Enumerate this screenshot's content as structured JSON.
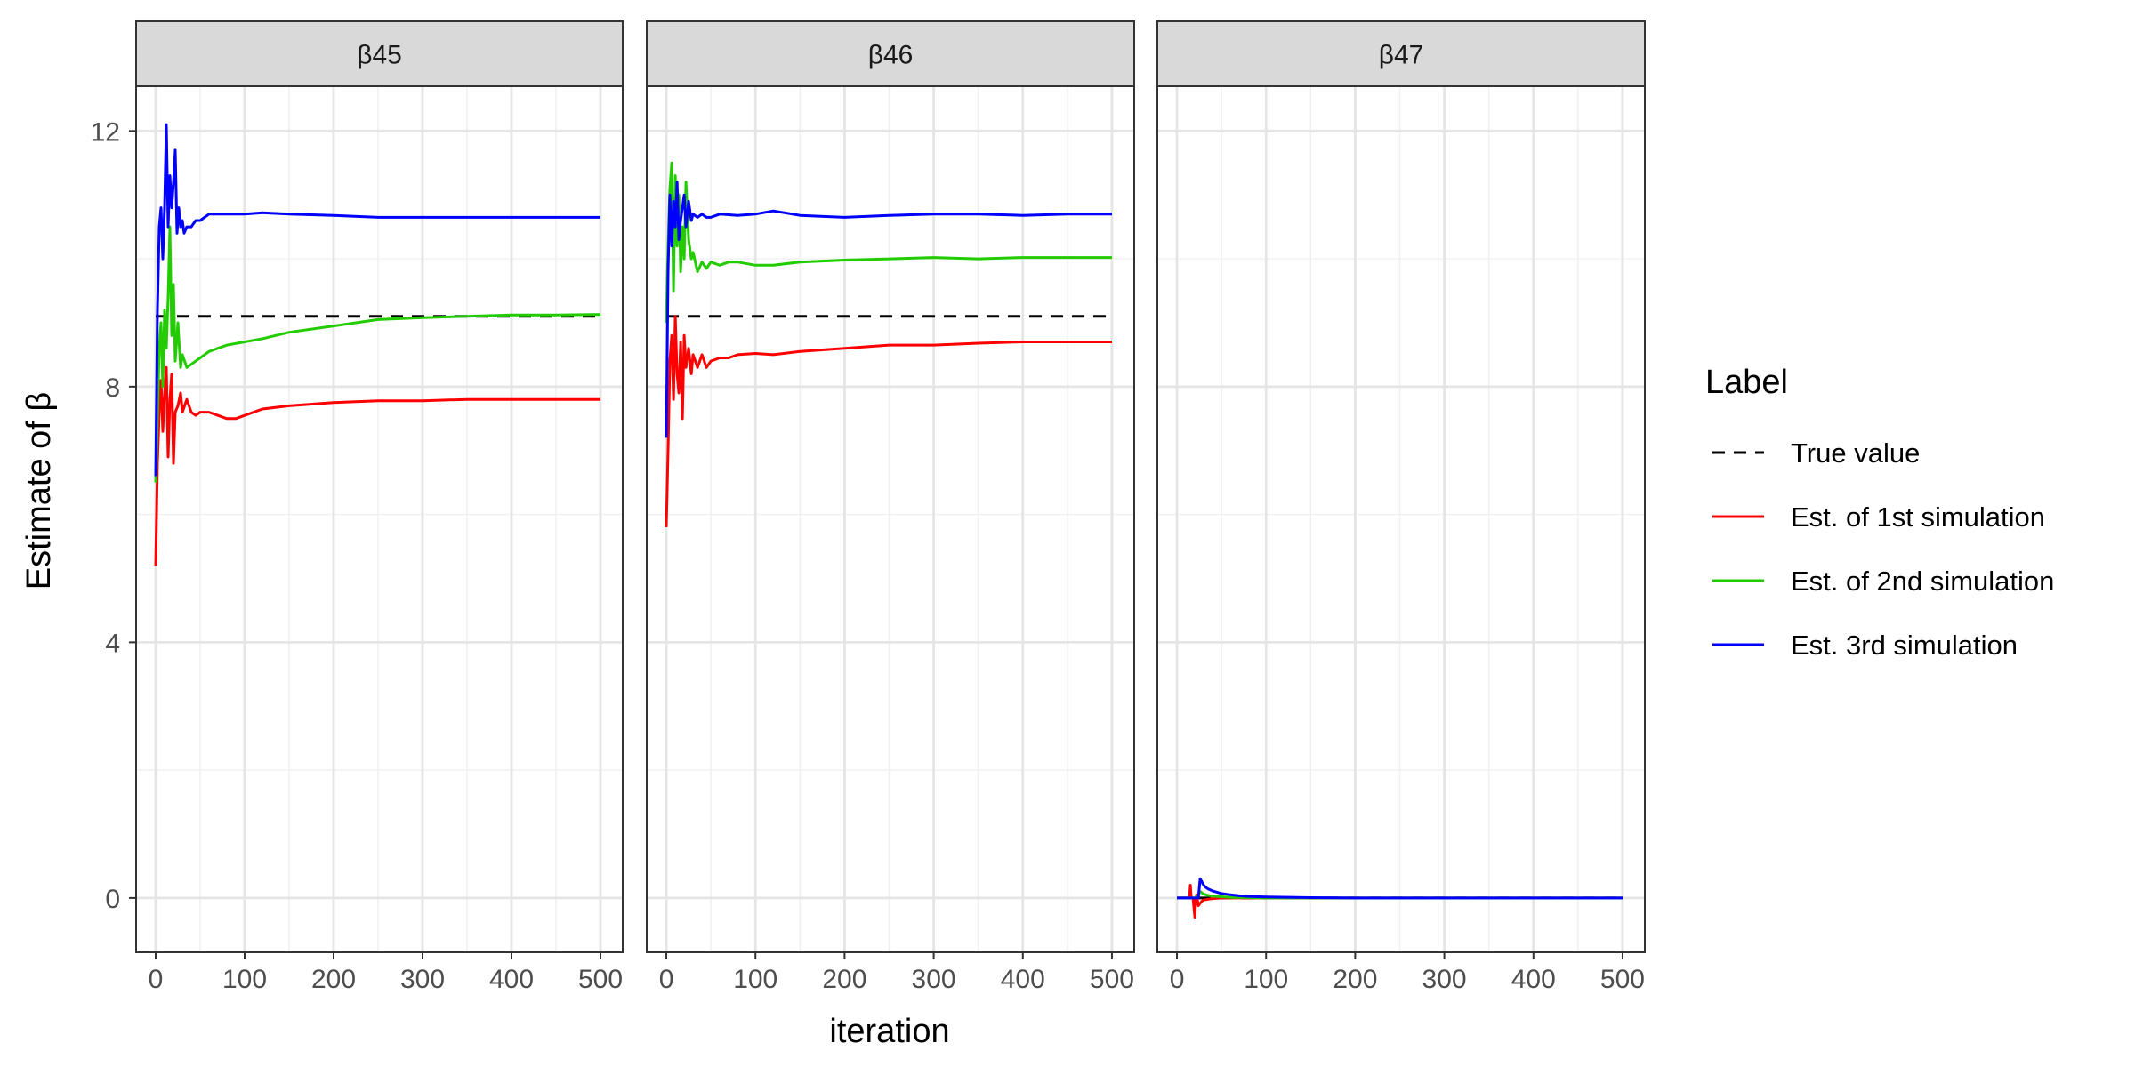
{
  "chart_data": {
    "type": "line",
    "facets": [
      {
        "label": "β45",
        "true_value": 9.1,
        "series": [
          {
            "name": "Est. of 1st simulation",
            "x": [
              0,
              2,
              4,
              6,
              8,
              10,
              12,
              14,
              16,
              18,
              20,
              22,
              25,
              28,
              30,
              35,
              40,
              45,
              50,
              60,
              70,
              80,
              90,
              100,
              120,
              150,
              200,
              250,
              300,
              350,
              400,
              450,
              500
            ],
            "y": [
              5.2,
              6.8,
              7.6,
              8.1,
              7.3,
              7.9,
              8.3,
              6.9,
              7.8,
              8.2,
              6.8,
              7.6,
              7.7,
              7.9,
              7.6,
              7.8,
              7.6,
              7.55,
              7.6,
              7.6,
              7.55,
              7.5,
              7.5,
              7.55,
              7.65,
              7.7,
              7.75,
              7.78,
              7.78,
              7.8,
              7.8,
              7.8,
              7.8
            ]
          },
          {
            "name": "Est. of 2nd simulation",
            "x": [
              0,
              2,
              4,
              6,
              8,
              10,
              12,
              14,
              16,
              18,
              20,
              22,
              25,
              28,
              30,
              35,
              40,
              50,
              60,
              70,
              80,
              100,
              120,
              150,
              200,
              250,
              300,
              350,
              400,
              450,
              500
            ],
            "y": [
              6.5,
              7.5,
              8.6,
              9.0,
              8.0,
              9.2,
              8.6,
              9.4,
              10.5,
              8.8,
              9.6,
              8.4,
              9.0,
              8.3,
              8.5,
              8.3,
              8.35,
              8.45,
              8.55,
              8.6,
              8.65,
              8.7,
              8.75,
              8.85,
              8.95,
              9.05,
              9.08,
              9.1,
              9.12,
              9.12,
              9.13
            ]
          },
          {
            "name": "Est. 3rd simulation",
            "x": [
              0,
              2,
              4,
              6,
              8,
              10,
              12,
              14,
              16,
              18,
              20,
              22,
              24,
              26,
              28,
              30,
              32,
              35,
              40,
              45,
              50,
              55,
              60,
              70,
              80,
              100,
              120,
              150,
              200,
              250,
              300,
              350,
              400,
              450,
              500
            ],
            "y": [
              6.6,
              9.2,
              10.5,
              10.8,
              10.0,
              10.8,
              12.1,
              10.5,
              11.3,
              10.8,
              11.2,
              11.7,
              10.4,
              10.8,
              10.5,
              10.6,
              10.4,
              10.5,
              10.5,
              10.6,
              10.6,
              10.65,
              10.7,
              10.7,
              10.7,
              10.7,
              10.72,
              10.7,
              10.68,
              10.65,
              10.65,
              10.65,
              10.65,
              10.65,
              10.65
            ]
          }
        ]
      },
      {
        "label": "β46",
        "true_value": 9.1,
        "series": [
          {
            "name": "Est. of 1st simulation",
            "x": [
              0,
              2,
              4,
              6,
              8,
              10,
              12,
              14,
              16,
              18,
              20,
              22,
              25,
              28,
              30,
              35,
              40,
              45,
              50,
              60,
              70,
              80,
              100,
              120,
              150,
              200,
              250,
              300,
              350,
              400,
              450,
              500
            ],
            "y": [
              5.8,
              7.0,
              8.4,
              8.8,
              7.8,
              9.1,
              8.2,
              7.9,
              8.7,
              7.5,
              8.8,
              8.3,
              8.6,
              8.2,
              8.5,
              8.3,
              8.5,
              8.3,
              8.4,
              8.45,
              8.45,
              8.5,
              8.52,
              8.5,
              8.55,
              8.6,
              8.65,
              8.65,
              8.68,
              8.7,
              8.7,
              8.7
            ]
          },
          {
            "name": "Est. of 2nd simulation",
            "x": [
              0,
              2,
              4,
              6,
              8,
              10,
              12,
              14,
              16,
              18,
              20,
              22,
              25,
              28,
              30,
              35,
              40,
              45,
              50,
              60,
              70,
              80,
              100,
              120,
              150,
              200,
              250,
              300,
              350,
              400,
              450,
              500
            ],
            "y": [
              9.0,
              10.2,
              11.1,
              11.5,
              9.5,
              11.3,
              10.2,
              11.0,
              9.8,
              10.5,
              10.0,
              11.2,
              10.3,
              10.0,
              10.1,
              9.8,
              9.95,
              9.85,
              9.95,
              9.9,
              9.95,
              9.95,
              9.9,
              9.9,
              9.95,
              9.98,
              10.0,
              10.02,
              10.0,
              10.02,
              10.02,
              10.02
            ]
          },
          {
            "name": "Est. 3rd simulation",
            "x": [
              0,
              2,
              4,
              6,
              8,
              10,
              12,
              14,
              16,
              18,
              20,
              22,
              25,
              28,
              30,
              35,
              40,
              45,
              50,
              60,
              80,
              100,
              120,
              150,
              200,
              250,
              300,
              350,
              400,
              450,
              500
            ],
            "y": [
              7.2,
              9.8,
              11.0,
              10.2,
              10.9,
              10.5,
              11.2,
              10.3,
              10.6,
              10.8,
              11.0,
              10.5,
              10.9,
              10.6,
              10.7,
              10.65,
              10.7,
              10.65,
              10.65,
              10.7,
              10.68,
              10.7,
              10.75,
              10.68,
              10.65,
              10.68,
              10.7,
              10.7,
              10.68,
              10.7,
              10.7
            ]
          }
        ]
      },
      {
        "label": "β47",
        "true_value": 0,
        "series": [
          {
            "name": "Est. of 1st simulation",
            "x": [
              0,
              14,
              15,
              16,
              18,
              20,
              21,
              22,
              24,
              26,
              28,
              30,
              35,
              40,
              50,
              60,
              80,
              100,
              150,
              200,
              300,
              400,
              500
            ],
            "y": [
              0,
              0,
              0.2,
              0,
              0,
              -0.3,
              -0.05,
              0.05,
              -0.12,
              -0.08,
              -0.05,
              -0.03,
              -0.02,
              -0.01,
              0,
              0,
              0,
              0,
              0,
              0,
              0,
              0,
              0
            ]
          },
          {
            "name": "Est. of 2nd simulation",
            "x": [
              0,
              20,
              24,
              26,
              28,
              30,
              35,
              40,
              50,
              60,
              80,
              100,
              150,
              200,
              300,
              400,
              500
            ],
            "y": [
              0,
              0,
              0.05,
              0.1,
              0.08,
              0.06,
              0.04,
              0.03,
              0.02,
              0.01,
              0.005,
              0,
              0,
              0,
              0,
              0,
              0
            ]
          },
          {
            "name": "Est. 3rd simulation",
            "x": [
              0,
              24,
              26,
              28,
              30,
              32,
              35,
              40,
              45,
              50,
              60,
              70,
              80,
              100,
              150,
              200,
              300,
              400,
              500
            ],
            "y": [
              0,
              0,
              0.3,
              0.25,
              0.2,
              0.17,
              0.14,
              0.11,
              0.09,
              0.07,
              0.05,
              0.035,
              0.025,
              0.015,
              0.005,
              0,
              0,
              0,
              0
            ]
          }
        ]
      }
    ],
    "x_ticks": [
      0,
      100,
      200,
      300,
      400,
      500
    ],
    "y_ticks": [
      0,
      4,
      8,
      12
    ],
    "xlim": [
      -22,
      525
    ],
    "ylim": [
      -0.85,
      12.7
    ],
    "xlabel": "iteration",
    "ylabel_prefix": "Estimate of ",
    "ylabel_symbol": "β",
    "grid": true,
    "legend": {
      "title": "Label",
      "position": "right",
      "items": [
        {
          "label": "True value",
          "color": "#000000",
          "dashed": true
        },
        {
          "label": "Est. of 1st simulation",
          "color": "#FF0000",
          "dashed": false
        },
        {
          "label": "Est. of 2nd simulation",
          "color": "#22CC00",
          "dashed": false
        },
        {
          "label": "Est. 3rd simulation",
          "color": "#0000FF",
          "dashed": false
        }
      ]
    },
    "colors": {
      "true_value": "#000000",
      "Est. of 1st simulation": "#FF0000",
      "Est. of 2nd simulation": "#22CC00",
      "Est. 3rd simulation": "#0000FF",
      "strip_fill": "#D9D9D9",
      "grid_major": "#E5E5E5",
      "grid_minor": "#F0F0F0"
    }
  }
}
